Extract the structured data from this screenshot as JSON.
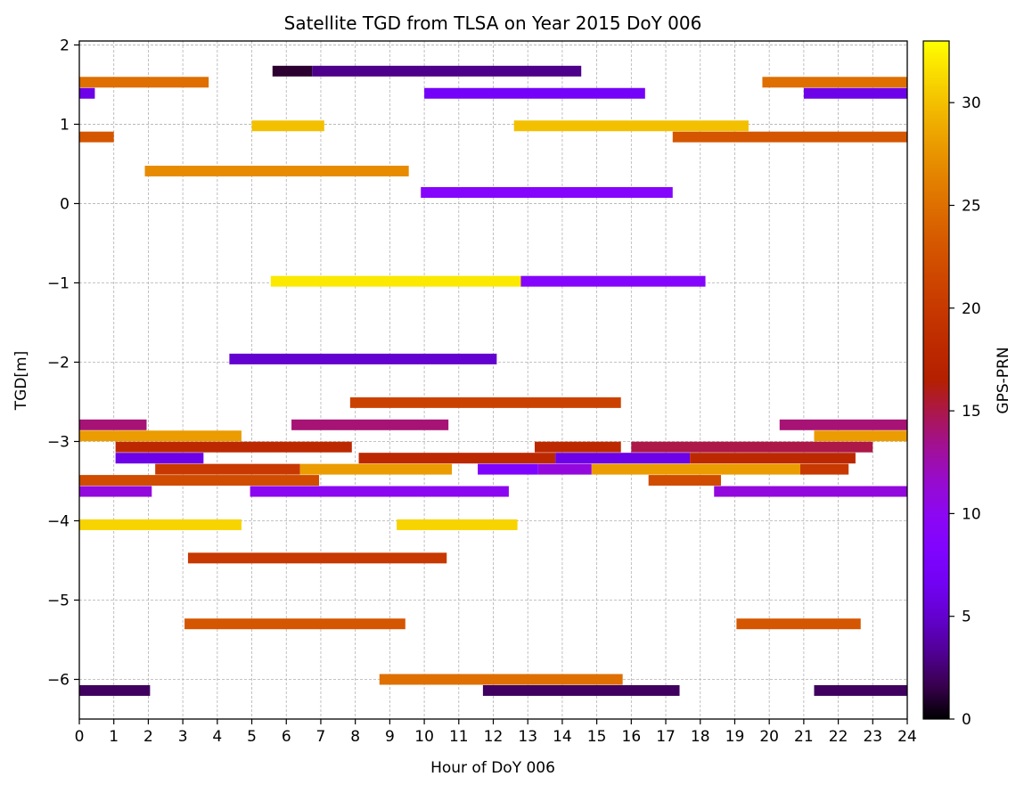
{
  "chart_data": {
    "type": "bar",
    "title": "Satellite TGD from TLSA on Year 2015 DoY 006",
    "xlabel": "Hour of DoY 006",
    "ylabel": "TGD[m]",
    "xlim": [
      0,
      24
    ],
    "ylim": [
      -6.5,
      2.05
    ],
    "xticks": [
      0,
      1,
      2,
      3,
      4,
      5,
      6,
      7,
      8,
      9,
      10,
      11,
      12,
      13,
      14,
      15,
      16,
      17,
      18,
      19,
      20,
      21,
      22,
      23,
      24
    ],
    "xtick_labels": [
      "0",
      "1",
      "2",
      "3",
      "4",
      "5",
      "6",
      "7",
      "8",
      "9",
      "10",
      "11",
      "12",
      "13",
      "14",
      "15",
      "16",
      "17",
      "18",
      "19",
      "20",
      "21",
      "22",
      "23",
      "24"
    ],
    "yticks": [
      -6,
      -5,
      -4,
      -3,
      -2,
      -1,
      0,
      1,
      2
    ],
    "ytick_labels": [
      "−6",
      "−5",
      "−4",
      "−3",
      "−2",
      "−1",
      "0",
      "1",
      "2"
    ],
    "grid": true,
    "colorbar": {
      "label": "GPS-PRN",
      "colormap": "gnuplot",
      "range": [
        0,
        33
      ],
      "ticks": [
        0,
        5,
        10,
        15,
        20,
        25,
        30
      ],
      "tick_labels": [
        "0",
        "5",
        "10",
        "15",
        "20",
        "25",
        "30"
      ]
    },
    "segments": [
      {
        "prn": 1,
        "tgd": 1.67,
        "start": 5.6,
        "end": 6.75
      },
      {
        "prn": 3,
        "tgd": 1.67,
        "start": 6.75,
        "end": 14.55
      },
      {
        "prn": 25,
        "tgd": 1.53,
        "start": 0.0,
        "end": 3.75
      },
      {
        "prn": 25,
        "tgd": 1.53,
        "start": 19.8,
        "end": 24.0
      },
      {
        "prn": 6,
        "tgd": 1.39,
        "start": 0.0,
        "end": 0.45
      },
      {
        "prn": 7,
        "tgd": 1.39,
        "start": 10.0,
        "end": 16.4
      },
      {
        "prn": 6,
        "tgd": 1.39,
        "start": 21.0,
        "end": 24.0
      },
      {
        "prn": 30,
        "tgd": 0.98,
        "start": 5.0,
        "end": 7.1
      },
      {
        "prn": 30,
        "tgd": 0.98,
        "start": 12.6,
        "end": 19.4
      },
      {
        "prn": 23,
        "tgd": 0.84,
        "start": 0.0,
        "end": 1.0
      },
      {
        "prn": 23,
        "tgd": 0.84,
        "start": 17.2,
        "end": 24.0
      },
      {
        "prn": 27,
        "tgd": 0.41,
        "start": 1.9,
        "end": 9.55
      },
      {
        "prn": 9,
        "tgd": 0.14,
        "start": 9.9,
        "end": 17.2
      },
      {
        "prn": 32,
        "tgd": -0.98,
        "start": 5.55,
        "end": 12.8
      },
      {
        "prn": 9,
        "tgd": -0.98,
        "start": 12.8,
        "end": 18.15
      },
      {
        "prn": 5,
        "tgd": -1.96,
        "start": 4.35,
        "end": 12.1
      },
      {
        "prn": 21,
        "tgd": -2.51,
        "start": 7.85,
        "end": 15.7
      },
      {
        "prn": 14,
        "tgd": -2.79,
        "start": 0.0,
        "end": 1.95
      },
      {
        "prn": 14,
        "tgd": -2.79,
        "start": 6.15,
        "end": 10.7
      },
      {
        "prn": 14,
        "tgd": -2.79,
        "start": 20.3,
        "end": 24.0
      },
      {
        "prn": 28,
        "tgd": -2.93,
        "start": 0.0,
        "end": 4.7
      },
      {
        "prn": 28,
        "tgd": -2.93,
        "start": 21.3,
        "end": 24.0
      },
      {
        "prn": 18,
        "tgd": -3.07,
        "start": 1.05,
        "end": 7.9
      },
      {
        "prn": 18,
        "tgd": -3.07,
        "start": 13.2,
        "end": 15.7
      },
      {
        "prn": 15,
        "tgd": -3.07,
        "start": 16.0,
        "end": 23.0
      },
      {
        "prn": 6,
        "tgd": -3.21,
        "start": 1.05,
        "end": 3.6
      },
      {
        "prn": 18,
        "tgd": -3.21,
        "start": 8.1,
        "end": 13.8
      },
      {
        "prn": 6,
        "tgd": -3.21,
        "start": 13.8,
        "end": 17.7
      },
      {
        "prn": 18,
        "tgd": -3.21,
        "start": 17.7,
        "end": 22.5
      },
      {
        "prn": 20,
        "tgd": -3.35,
        "start": 2.2,
        "end": 6.4
      },
      {
        "prn": 28,
        "tgd": -3.35,
        "start": 6.4,
        "end": 10.8
      },
      {
        "prn": 8,
        "tgd": -3.35,
        "start": 11.55,
        "end": 13.3
      },
      {
        "prn": 11,
        "tgd": -3.35,
        "start": 13.3,
        "end": 14.85
      },
      {
        "prn": 28,
        "tgd": -3.35,
        "start": 14.85,
        "end": 20.9
      },
      {
        "prn": 20,
        "tgd": -3.35,
        "start": 20.9,
        "end": 22.3
      },
      {
        "prn": 22,
        "tgd": -3.49,
        "start": 0.0,
        "end": 6.95
      },
      {
        "prn": 22,
        "tgd": -3.49,
        "start": 16.5,
        "end": 18.6
      },
      {
        "prn": 11,
        "tgd": -3.63,
        "start": 0.0,
        "end": 2.1
      },
      {
        "prn": 10,
        "tgd": -3.63,
        "start": 4.95,
        "end": 12.45
      },
      {
        "prn": 11,
        "tgd": -3.63,
        "start": 18.4,
        "end": 24.0
      },
      {
        "prn": 31,
        "tgd": -4.05,
        "start": 0.0,
        "end": 4.7
      },
      {
        "prn": 31,
        "tgd": -4.05,
        "start": 9.2,
        "end": 12.7
      },
      {
        "prn": 20,
        "tgd": -4.47,
        "start": 3.15,
        "end": 10.65
      },
      {
        "prn": 23,
        "tgd": -5.3,
        "start": 3.05,
        "end": 9.45
      },
      {
        "prn": 23,
        "tgd": -5.3,
        "start": 19.05,
        "end": 22.65
      },
      {
        "prn": 25,
        "tgd": -6.0,
        "start": 8.7,
        "end": 15.75
      },
      {
        "prn": 2,
        "tgd": -6.14,
        "start": 0.0,
        "end": 2.05
      },
      {
        "prn": 2,
        "tgd": -6.14,
        "start": 11.7,
        "end": 17.4
      },
      {
        "prn": 2,
        "tgd": -6.14,
        "start": 21.3,
        "end": 24.0
      }
    ]
  }
}
